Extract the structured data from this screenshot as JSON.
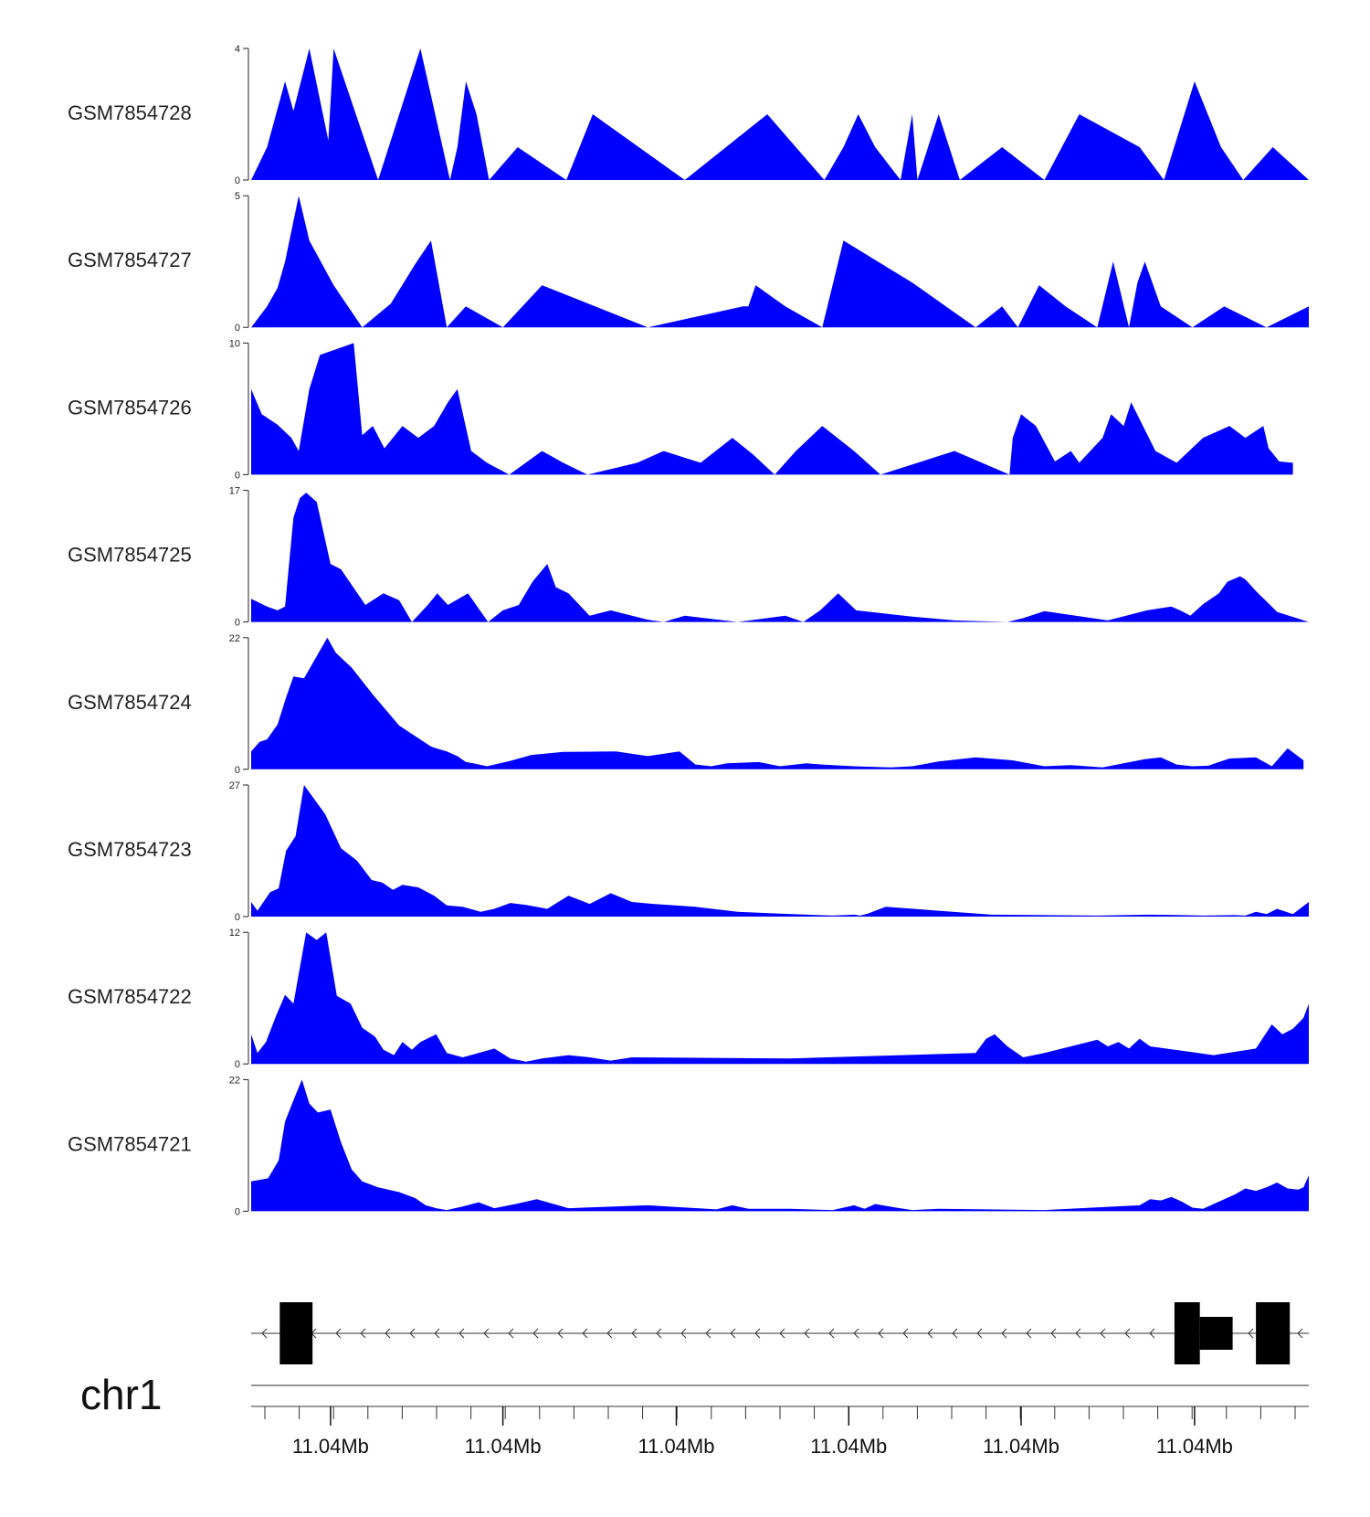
{
  "chart_data": {
    "type": "area",
    "title": "",
    "chromosome": "chr1",
    "fill_color": "#0000ff",
    "gene_color": "#000000",
    "x_range": [
      0,
      100
    ],
    "x_tick_labels": [
      "11.04Mb",
      "11.04Mb",
      "11.04Mb",
      "11.04Mb",
      "11.04Mb",
      "11.04Mb"
    ],
    "x_tick_positions": [
      7.5,
      23.8,
      40.2,
      56.5,
      72.8,
      89.2
    ],
    "minor_tick_count": 31,
    "tracks": [
      {
        "name": "GSM7854728",
        "ymax": 4,
        "ymin_label": "0",
        "x": [
          0,
          1.5,
          3.2,
          4.0,
          5.5,
          7.3,
          7.8,
          12.0,
          16.0,
          18.8,
          19.5,
          20.3,
          21.3,
          22.5,
          25.2,
          29.8,
          32.3,
          41.0,
          48.8,
          54.2,
          56.0,
          57.4,
          59.0,
          61.4,
          62.5,
          63.0,
          65.0,
          67.0,
          71.0,
          75.0,
          78.3,
          84.0,
          86.3,
          89.2,
          91.7,
          93.8,
          96.6,
          100
        ],
        "y": [
          0,
          1,
          3,
          2.1,
          4,
          1.2,
          4,
          0,
          4,
          0,
          1,
          3,
          2,
          0,
          1,
          0,
          2,
          0,
          2,
          0,
          1,
          2,
          1,
          0,
          2,
          0,
          2,
          0,
          1,
          0,
          2,
          1,
          0,
          3,
          1,
          0,
          1,
          0
        ]
      },
      {
        "name": "GSM7854727",
        "ymax": 5,
        "ymin_label": "0",
        "x": [
          0,
          1.5,
          2.5,
          3.2,
          4.5,
          5.5,
          7.8,
          10.5,
          13.2,
          15.5,
          17.0,
          18.5,
          20.3,
          23.8,
          27.5,
          37.5,
          46.5,
          47.0,
          47.7,
          50.5,
          54.0,
          56.0,
          62.5,
          68.5,
          71.0,
          72.5,
          74.5,
          77.0,
          80.0,
          81.5,
          83.0,
          83.8,
          84.5,
          86.0,
          89.0,
          92.0,
          96.0,
          100
        ],
        "y": [
          0,
          0.8,
          1.5,
          2.5,
          5,
          3.3,
          1.6,
          0,
          0.9,
          2.4,
          3.3,
          0,
          0.8,
          0,
          1.6,
          0,
          0.8,
          0.8,
          1.6,
          0.8,
          0,
          3.3,
          1.7,
          0,
          0.8,
          0,
          1.6,
          0.8,
          0,
          2.5,
          0,
          1.7,
          2.5,
          0.8,
          0,
          0.8,
          0,
          0.8
        ]
      },
      {
        "name": "GSM7854726",
        "ymax": 10,
        "ymin_label": "0",
        "x": [
          0,
          1.0,
          2.5,
          3.8,
          4.5,
          5.5,
          6.5,
          9.7,
          10.5,
          11.5,
          12.6,
          14.3,
          15.8,
          17.3,
          18.6,
          19.5,
          20.8,
          22.3,
          24.4,
          27.5,
          29.5,
          31.8,
          36.5,
          39.0,
          42.5,
          45.5,
          47.5,
          49.5,
          51.5,
          54.0,
          57.0,
          59.5,
          66.5,
          71.7,
          72.0,
          72.8,
          74.2,
          76.0,
          77.5,
          78.3,
          80.5,
          81.3,
          82.5,
          83.2,
          85.5,
          87.5,
          90.0,
          92.5,
          94.0,
          95.7,
          96.2,
          97.2,
          98.5
        ],
        "y": [
          6.5,
          4.6,
          3.8,
          2.8,
          1.8,
          6.5,
          9.1,
          10,
          3.0,
          3.7,
          2.0,
          3.7,
          2.8,
          3.7,
          5.5,
          6.5,
          1.8,
          0.9,
          0,
          1.8,
          0.9,
          0,
          0.9,
          1.8,
          0.9,
          2.8,
          1.5,
          0,
          1.8,
          3.7,
          1.8,
          0,
          1.8,
          0,
          2.8,
          4.6,
          3.7,
          1.0,
          1.8,
          0.9,
          2.8,
          4.6,
          3.7,
          5.5,
          1.8,
          0.9,
          2.8,
          3.7,
          2.8,
          3.7,
          2.0,
          1.0,
          0.9
        ]
      },
      {
        "name": "GSM7854725",
        "ymax": 17,
        "ymin_label": "0",
        "x": [
          0,
          1.5,
          2.5,
          3.2,
          4.0,
          4.6,
          5.2,
          6.2,
          7.5,
          8.5,
          9.3,
          10.8,
          12.5,
          14.0,
          15.2,
          16.7,
          17.6,
          18.6,
          20.5,
          22.4,
          23.8,
          25.3,
          26.6,
          28.0,
          28.8,
          30.0,
          32.0,
          34.0,
          36.0,
          37.5,
          39.0,
          41.0,
          46.0,
          50.5,
          52.2,
          53.8,
          55.5,
          57.2,
          62.5,
          66.5,
          71.5,
          73.0,
          75.0,
          81.0,
          84.7,
          87.0,
          88.0,
          88.8,
          90.0,
          91.5,
          92.3,
          93.5,
          94.0,
          95.0,
          97.0,
          100
        ],
        "y": [
          3.0,
          2.0,
          1.5,
          2.0,
          13.5,
          16.0,
          16.7,
          15.5,
          7.5,
          6.8,
          5.2,
          2.2,
          3.7,
          2.8,
          0,
          2.2,
          3.7,
          2.2,
          3.7,
          0,
          1.5,
          2.2,
          5.2,
          7.5,
          4.5,
          3.7,
          0.8,
          1.5,
          0.8,
          0.3,
          0,
          0.8,
          0,
          0.8,
          0,
          1.5,
          3.7,
          1.5,
          0.7,
          0.2,
          0,
          0.5,
          1.4,
          0.2,
          1.5,
          2.0,
          1.4,
          0.8,
          2.3,
          3.7,
          5.2,
          5.9,
          5.5,
          4.0,
          1.3,
          0
        ]
      },
      {
        "name": "GSM7854724",
        "ymax": 22,
        "ymin_label": "0",
        "x": [
          0,
          0.8,
          1.5,
          2.5,
          3.3,
          4.0,
          5.0,
          7.2,
          8.0,
          9.5,
          11.5,
          14.0,
          17.0,
          17.5,
          18.5,
          19.5,
          20.3,
          21.0,
          22.3,
          24.5,
          26.5,
          29.5,
          34.5,
          37.5,
          40.5,
          42.0,
          43.5,
          45.0,
          48.0,
          50.0,
          52.5,
          54.0,
          57.0,
          60.5,
          62.5,
          65.0,
          68.5,
          72.0,
          75.0,
          77.5,
          80.5,
          82.5,
          84.5,
          86.0,
          87.5,
          89.0,
          90.5,
          91.5,
          92.5,
          95.0,
          96.5,
          98.0,
          99.5
        ],
        "y": [
          3.0,
          4.6,
          5.0,
          7.5,
          12.0,
          15.5,
          15.2,
          22,
          19.5,
          17.0,
          12.5,
          7.3,
          3.8,
          3.5,
          3.0,
          2.2,
          1.2,
          1.0,
          0.5,
          1.4,
          2.4,
          2.9,
          3.0,
          2.2,
          3.0,
          0.8,
          0.5,
          1.0,
          1.2,
          0.5,
          1.0,
          0.8,
          0.5,
          0.3,
          0.5,
          1.3,
          2.0,
          1.5,
          0.5,
          0.7,
          0.3,
          1.0,
          1.7,
          2.0,
          0.8,
          0.5,
          0.6,
          1.2,
          1.8,
          2.0,
          0.5,
          3.5,
          1.5
        ]
      },
      {
        "name": "GSM7854723",
        "ymax": 27,
        "ymin_label": "0",
        "x": [
          0,
          0.6,
          1.8,
          2.6,
          3.3,
          4.2,
          5.0,
          7.0,
          8.5,
          10.0,
          11.4,
          12.4,
          13.4,
          14.3,
          15.8,
          17.3,
          18.5,
          20.0,
          21.7,
          23.0,
          24.5,
          26.0,
          28.0,
          30.0,
          32.0,
          34.0,
          36.0,
          38.0,
          42.0,
          46.0,
          50.0,
          55.0,
          57.0,
          57.6,
          58.3,
          60.0,
          70.0,
          80.0,
          85.0,
          88.0,
          90.0,
          93.0,
          94.0,
          95.0,
          96.0,
          97.0,
          98.5,
          100
        ],
        "y": [
          3.0,
          1.2,
          5.0,
          5.8,
          13.5,
          16.5,
          27,
          21.0,
          14.0,
          11.5,
          7.5,
          7.0,
          5.5,
          6.5,
          6.0,
          4.3,
          2.3,
          2.0,
          1.0,
          1.6,
          2.8,
          2.4,
          1.6,
          4.3,
          2.6,
          4.8,
          3.0,
          2.6,
          2.0,
          1.0,
          0.6,
          0.2,
          0.4,
          0.2,
          0.6,
          2.0,
          0.4,
          0.2,
          0.4,
          0.3,
          0.2,
          0.3,
          0.2,
          1.0,
          0.5,
          1.6,
          0.5,
          3.0
        ]
      },
      {
        "name": "GSM7854722",
        "ymax": 12,
        "ymin_label": "0",
        "x": [
          0,
          0.6,
          1.4,
          2.4,
          3.2,
          4.0,
          5.2,
          6.2,
          7.1,
          8.1,
          9.4,
          10.5,
          11.7,
          12.5,
          13.5,
          14.3,
          15.2,
          16.0,
          17.5,
          18.5,
          20.0,
          21.5,
          23.0,
          24.5,
          26.0,
          27.5,
          30.0,
          32.0,
          34.0,
          36.0,
          51.0,
          68.5,
          69.5,
          70.3,
          71.5,
          73.0,
          75.0,
          80.0,
          81.0,
          82.0,
          83.0,
          84.0,
          85.0,
          88.0,
          91.0,
          95.0,
          96.5,
          97.5,
          98.5,
          99.5,
          100
        ],
        "y": [
          2.7,
          1.0,
          2.0,
          4.5,
          6.3,
          5.5,
          12,
          11.3,
          12,
          6.2,
          5.5,
          3.3,
          2.5,
          1.3,
          0.8,
          2.0,
          1.3,
          2.0,
          2.7,
          1.0,
          0.6,
          1.0,
          1.4,
          0.5,
          0.2,
          0.5,
          0.8,
          0.6,
          0.3,
          0.6,
          0.5,
          1.0,
          2.3,
          2.7,
          1.6,
          0.6,
          1.0,
          2.2,
          1.6,
          2.0,
          1.4,
          2.3,
          1.6,
          1.2,
          0.8,
          1.4,
          3.6,
          2.7,
          3.2,
          4.2,
          5.5
        ]
      },
      {
        "name": "GSM7854721",
        "ymax": 22,
        "ymin_label": "0",
        "x": [
          0,
          1.6,
          2.6,
          3.2,
          4.1,
          4.8,
          5.5,
          6.3,
          7.5,
          8.5,
          9.5,
          10.5,
          12.0,
          14.0,
          15.5,
          16.5,
          17.5,
          18.5,
          20.0,
          21.5,
          23.0,
          25.0,
          27.0,
          30.0,
          37.5,
          44.0,
          45.5,
          47.0,
          51.0,
          55.0,
          57.0,
          58.0,
          59.0,
          61.0,
          62.5,
          65.0,
          75.0,
          84.0,
          85.0,
          86.0,
          87.0,
          88.0,
          89.0,
          90.0,
          91.0,
          92.0,
          93.0,
          94.0,
          95.0,
          96.0,
          97.0,
          98.0,
          99.0,
          99.5,
          100
        ],
        "y": [
          5.0,
          5.5,
          8.5,
          15.0,
          19.0,
          22,
          18.0,
          16.5,
          17.0,
          11.5,
          7.0,
          5.0,
          4.0,
          3.2,
          2.2,
          1.0,
          0.5,
          0.2,
          0.8,
          1.5,
          0.5,
          1.2,
          2.0,
          0.5,
          1.0,
          0.3,
          1.0,
          0.4,
          0.4,
          0.2,
          1.0,
          0.4,
          1.2,
          0.6,
          0.2,
          0.4,
          0.2,
          1.0,
          2.0,
          1.8,
          2.4,
          1.6,
          0.6,
          0.4,
          1.2,
          2.0,
          2.8,
          3.8,
          3.4,
          4.0,
          4.8,
          3.8,
          3.6,
          4.0,
          6.0
        ]
      }
    ],
    "gene_model": {
      "strand": "-",
      "exons": [
        {
          "start": 2.7,
          "end": 5.8,
          "type": "exon"
        },
        {
          "start": 87.3,
          "end": 89.7,
          "type": "exon"
        },
        {
          "start": 89.7,
          "end": 92.8,
          "type": "utr"
        },
        {
          "start": 95.0,
          "end": 98.2,
          "type": "exon"
        }
      ]
    }
  }
}
